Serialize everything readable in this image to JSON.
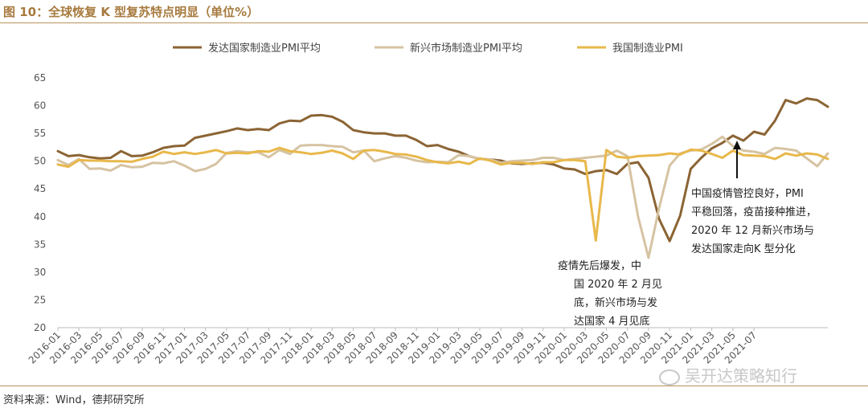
{
  "figure_title": "图 10：全球恢复 K 型复苏特点明显（单位%）",
  "source": "资料来源：Wind，德邦研究所",
  "watermark": "吴开达策略知行",
  "chart_data": {
    "type": "line",
    "ylim": [
      20,
      65
    ],
    "yticks": [
      20,
      25,
      30,
      35,
      40,
      45,
      50,
      55,
      60,
      65
    ],
    "x_tick_labels": [
      "2016-01",
      "2016-03",
      "2016-05",
      "2016-07",
      "2016-09",
      "2016-11",
      "2017-01",
      "2017-03",
      "2017-05",
      "2017-07",
      "2017-09",
      "2017-11",
      "2018-01",
      "2018-03",
      "2018-05",
      "2018-07",
      "2018-09",
      "2018-11",
      "2019-01",
      "2019-03",
      "2019-05",
      "2019-07",
      "2019-09",
      "2019-11",
      "2020-01",
      "2020-03",
      "2020-05",
      "2020-07",
      "2020-09",
      "2020-11",
      "2021-01",
      "2021-03",
      "2021-05",
      "2021-07"
    ],
    "legend_position": "top",
    "series": [
      {
        "name": "发达国家制造业PMI平均",
        "color": "#8b6434",
        "values": [
          51.8,
          50.9,
          51.1,
          50.7,
          50.5,
          50.6,
          51.8,
          50.9,
          51.0,
          51.6,
          52.4,
          52.7,
          52.8,
          54.2,
          54.6,
          55.0,
          55.4,
          55.9,
          55.6,
          55.8,
          55.6,
          56.8,
          57.3,
          57.2,
          58.2,
          58.3,
          58.0,
          57.1,
          55.6,
          55.2,
          55.0,
          55.0,
          54.6,
          54.6,
          53.8,
          52.7,
          52.9,
          52.2,
          51.7,
          50.9,
          50.4,
          50.3,
          50.1,
          49.6,
          49.5,
          49.6,
          49.7,
          49.4,
          48.7,
          48.5,
          47.7,
          48.2,
          48.4,
          47.7,
          49.5,
          49.8,
          47.0,
          39.6,
          35.6,
          40.2,
          48.6,
          50.6,
          52.3,
          53.3,
          54.6,
          53.7,
          55.3,
          54.8,
          57.3,
          61.0,
          60.4,
          61.3,
          61.0,
          59.8
        ]
      },
      {
        "name": "新兴市场制造业PMI平均",
        "color": "#d6c3a2",
        "values": [
          50.2,
          49.3,
          50.4,
          48.6,
          48.7,
          48.3,
          49.3,
          48.9,
          49.0,
          49.7,
          49.6,
          50.0,
          49.2,
          48.2,
          48.6,
          49.5,
          51.5,
          51.8,
          51.6,
          51.6,
          50.7,
          52.0,
          51.3,
          52.8,
          52.9,
          52.9,
          52.7,
          52.6,
          51.6,
          51.9,
          50.0,
          50.5,
          50.9,
          50.6,
          50.1,
          49.8,
          49.9,
          49.8,
          51.1,
          50.9,
          50.4,
          50.3,
          49.7,
          50.0,
          50.1,
          50.2,
          50.6,
          50.6,
          50.2,
          50.4,
          50.6,
          50.8,
          51.0,
          51.9,
          50.9,
          40.1,
          32.6,
          41.5,
          49.2,
          51.4,
          51.9,
          52.1,
          53.1,
          54.4,
          52.7,
          51.9,
          51.7,
          51.3,
          52.4,
          52.2,
          51.9,
          50.5,
          49.1,
          51.4
        ]
      },
      {
        "name": "我国制造业PMI",
        "color": "#e8b84b",
        "values": [
          49.4,
          49.0,
          50.2,
          50.1,
          50.1,
          50.0,
          50.0,
          49.9,
          50.4,
          50.8,
          51.7,
          51.3,
          51.6,
          51.3,
          51.6,
          52.0,
          51.4,
          51.5,
          51.4,
          51.8,
          51.7,
          52.4,
          51.8,
          51.6,
          51.3,
          51.5,
          51.9,
          51.4,
          50.4,
          51.9,
          52.0,
          51.7,
          51.3,
          51.2,
          50.8,
          50.2,
          49.8,
          49.6,
          49.9,
          49.5,
          50.5,
          50.1,
          49.4,
          49.7,
          49.7,
          49.5,
          49.8,
          49.8,
          50.2,
          50.2,
          50.0,
          35.7,
          52.0,
          50.8,
          50.6,
          50.9,
          51.0,
          51.1,
          51.4,
          51.2,
          52.1,
          51.9,
          51.3,
          50.6,
          51.9,
          51.1,
          51.0,
          50.9,
          50.4,
          51.4,
          51.0,
          51.4,
          51.2,
          50.4
        ]
      }
    ]
  },
  "annotations": {
    "covid": [
      "疫情先后爆发，中",
      "国 2020 年 2 月见",
      "底，新兴市场与发",
      "达国家 4 月见底"
    ],
    "ksplit": [
      "中国疫情管控良好，PMI",
      "平稳回落，疫苗接种推进，",
      "2020 年 12 月新兴市场与",
      "发达国家走向K 型分化"
    ]
  }
}
